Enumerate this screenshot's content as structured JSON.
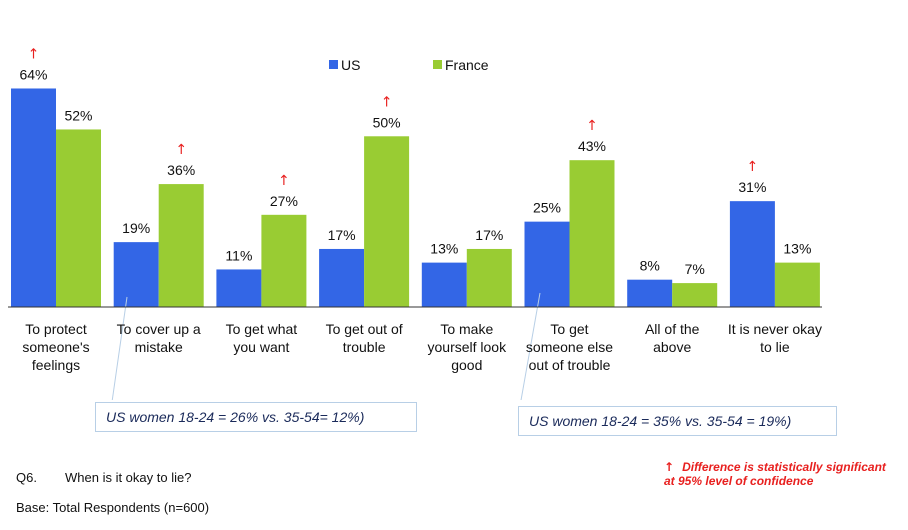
{
  "chart_data": {
    "type": "bar",
    "title": "",
    "xlabel": "",
    "ylabel": "",
    "ylim": [
      0,
      70
    ],
    "grid": false,
    "legend_position": "top-center",
    "categories": [
      [
        "To protect",
        "someone's",
        "feelings"
      ],
      [
        "To cover up a",
        "mistake"
      ],
      [
        "To get what",
        "you want"
      ],
      [
        "To get out of",
        "trouble"
      ],
      [
        "To make",
        "yourself look",
        "good"
      ],
      [
        "To get",
        "someone else",
        "out of trouble"
      ],
      [
        "All of the",
        "above"
      ],
      [
        "It is never okay",
        "to lie"
      ]
    ],
    "series": [
      {
        "name": "US",
        "color": "#3366e6",
        "values": [
          64,
          19,
          11,
          17,
          13,
          25,
          8,
          31
        ],
        "labels": [
          "64%",
          "19%",
          "11%",
          "17%",
          "13%",
          "25%",
          "8%",
          "31%"
        ],
        "significant": [
          true,
          false,
          false,
          false,
          false,
          false,
          false,
          true
        ]
      },
      {
        "name": "France",
        "color": "#99cc33",
        "values": [
          52,
          36,
          27,
          50,
          17,
          43,
          7,
          13
        ],
        "labels": [
          "52%",
          "36%",
          "27%",
          "50%",
          "17%",
          "43%",
          "7%",
          "13%"
        ],
        "significant": [
          false,
          true,
          true,
          true,
          false,
          true,
          false,
          false
        ]
      }
    ],
    "significance_marker": "↑",
    "significance_color": "#e8201f"
  },
  "callouts": [
    "US women 18-24  = 26% vs. 35-54= 12%)",
    "US women 18-24  = 35% vs. 35-54 = 19%)"
  ],
  "footnote": {
    "question_label": "Q6.",
    "question_text": "When is it okay to lie?",
    "base_text": "Base:  Total Respondents (n=600)",
    "significance_arrow": "↑",
    "significance_text_1": "Difference is statistically significant",
    "significance_text_2": "at 95% level of confidence"
  }
}
